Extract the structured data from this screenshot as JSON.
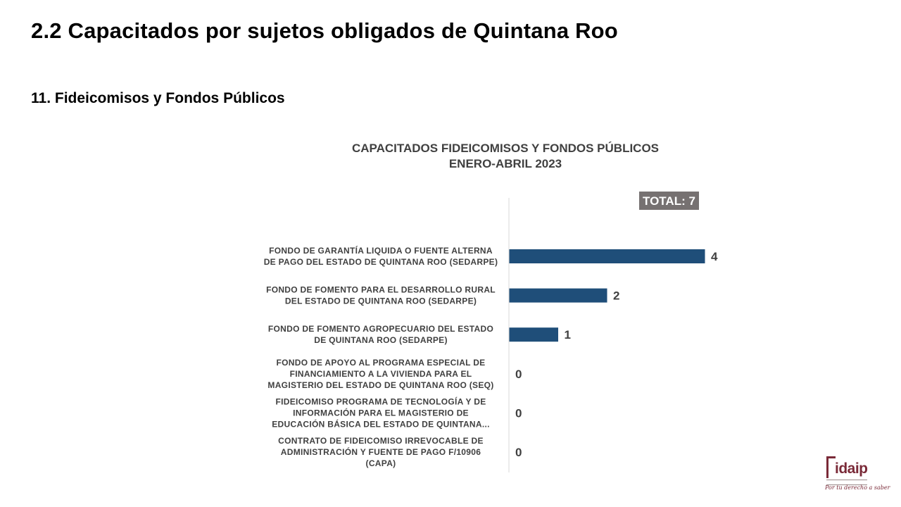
{
  "slide": {
    "title": "2.2 Capacitados por sujetos obligados de Quintana Roo",
    "section": "11. Fideicomisos y Fondos Públicos"
  },
  "chart_data": {
    "type": "bar",
    "orientation": "horizontal",
    "title_lines": [
      "CAPACITADOS FIDEICOMISOS Y FONDOS PÚBLICOS",
      "ENERO-ABRIL 2023"
    ],
    "total_label": "TOTAL: 7",
    "categories": [
      [
        "FONDO DE GARANTÍA LIQUIDA O FUENTE ALTERNA",
        "DE PAGO DEL ESTADO DE QUINTANA ROO (SEDARPE)"
      ],
      [
        "FONDO DE FOMENTO PARA EL DESARROLLO RURAL",
        "DEL ESTADO DE QUINTANA ROO (SEDARPE)"
      ],
      [
        "FONDO DE FOMENTO AGROPECUARIO DEL ESTADO",
        "DE QUINTANA ROO (SEDARPE)"
      ],
      [
        "FONDO DE APOYO AL PROGRAMA ESPECIAL DE",
        "FINANCIAMIENTO A LA VIVIENDA PARA EL",
        "MAGISTERIO DEL ESTADO DE QUINTANA ROO (SEQ)"
      ],
      [
        "FIDEICOMISO PROGRAMA DE TECNOLOGÍA Y DE",
        "INFORMACIÓN PARA EL MAGISTERIO DE",
        "EDUCACIÓN BÁSICA DEL ESTADO DE QUINTANA..."
      ],
      [
        "CONTRATO DE FIDEICOMISO IRREVOCABLE DE",
        "ADMINISTRACIÓN Y FUENTE DE PAGO F/10906",
        "(CAPA)"
      ]
    ],
    "values": [
      4,
      2,
      1,
      0,
      0,
      0
    ],
    "xlim": [
      0,
      7.5
    ],
    "bar_color": "#1f4e79",
    "grid": false,
    "legend": "none"
  },
  "logo": {
    "text": "idaip",
    "tagline": "Por tu derecho a saber",
    "color": "#7a2a38"
  }
}
